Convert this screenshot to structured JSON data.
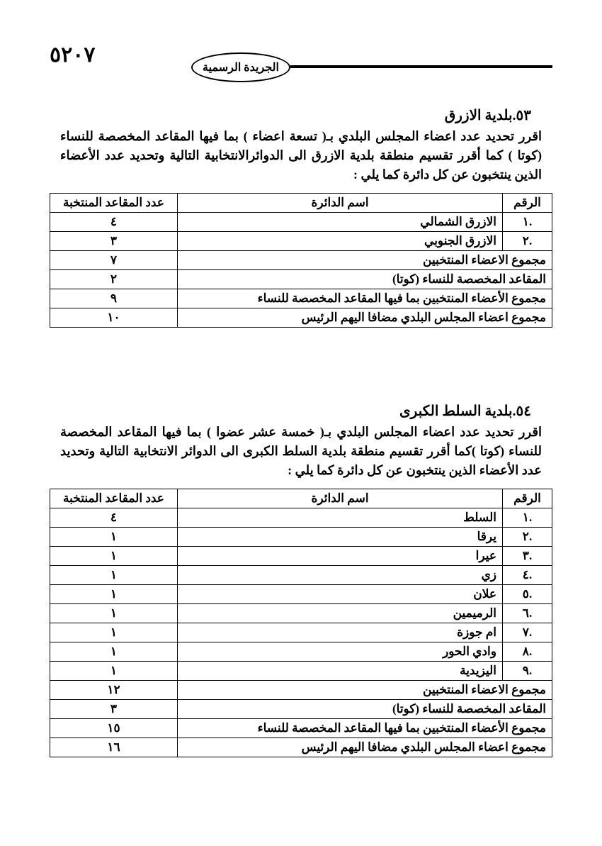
{
  "page_number": "٥٢٠٧",
  "gazette_label": "الجريدة الرسمية",
  "section1": {
    "title": "٥٣.بلدية الازرق",
    "paragraph": "اقرر تحديد عدد اعضاء المجلس البلدي بـ( تسعة اعضاء ) بما فيها المقاعد المخصصة للنساء (كوتا ) كما أقرر تقسيم منطقة بلدية الازرق الى الدوائرالانتخابية التالية وتحديد عدد الأعضاء الذين ينتخبون عن كل دائرة كما يلي :",
    "headers": {
      "num": "الرقم",
      "name": "اسم الدائرة",
      "seats": "عدد المقاعد المنتخبة"
    },
    "rows": [
      {
        "num": ".١",
        "name": "الازرق الشمالي",
        "seats": "٤"
      },
      {
        "num": ".٢",
        "name": "الازرق الجنوبي",
        "seats": "٣"
      }
    ],
    "summary": [
      {
        "label": "مجموع الاعضاء المنتخبين",
        "value": "٧"
      },
      {
        "label": "المقاعد المخصصة للنساء (كوتا)",
        "value": "٢"
      },
      {
        "label": "مجموع الأعضاء المنتخبين بما فيها المقاعد المخصصة للنساء",
        "value": "٩"
      },
      {
        "label": "مجموع اعضاء المجلس البلدي مضافا اليهم الرئيس",
        "value": "١٠"
      }
    ]
  },
  "section2": {
    "title": "٥٤.بلدية السلط الكبرى",
    "paragraph": "اقرر تحديد عدد اعضاء المجلس البلدي بـ( خمسة عشر عضوا ) بما فيها المقاعد المخصصة للنساء (كوتا )كما أقرر تقسيم منطقة بلدية السلط الكبرى الى الدوائر الانتخابية التالية وتحديد عدد الأعضاء الذين ينتخبون عن كل دائرة كما يلي :",
    "headers": {
      "num": "الرقم",
      "name": "اسم الدائرة",
      "seats": "عدد المقاعد المنتخبة"
    },
    "rows": [
      {
        "num": ".١",
        "name": "السلط",
        "seats": "٤"
      },
      {
        "num": ".٢",
        "name": "يرقا",
        "seats": "١"
      },
      {
        "num": ".٣",
        "name": "عيرا",
        "seats": "١"
      },
      {
        "num": ".٤",
        "name": "زي",
        "seats": "١"
      },
      {
        "num": ".٥",
        "name": "علان",
        "seats": "١"
      },
      {
        "num": ".٦",
        "name": "الرميمين",
        "seats": "١"
      },
      {
        "num": ".٧",
        "name": "ام جوزة",
        "seats": "١"
      },
      {
        "num": ".٨",
        "name": "وادي الحور",
        "seats": "١"
      },
      {
        "num": ".٩",
        "name": "اليزيدية",
        "seats": "١"
      }
    ],
    "summary": [
      {
        "label": "مجموع الاعضاء المنتخبين",
        "value": "١٢"
      },
      {
        "label": "المقاعد المخصصة للنساء (كوتا)",
        "value": "٣"
      },
      {
        "label": "مجموع الأعضاء المنتخبين بما فيها المقاعد المخصصة للنساء",
        "value": "١٥"
      },
      {
        "label": "مجموع اعضاء المجلس البلدي مضافا اليهم الرئيس",
        "value": "١٦"
      }
    ]
  }
}
